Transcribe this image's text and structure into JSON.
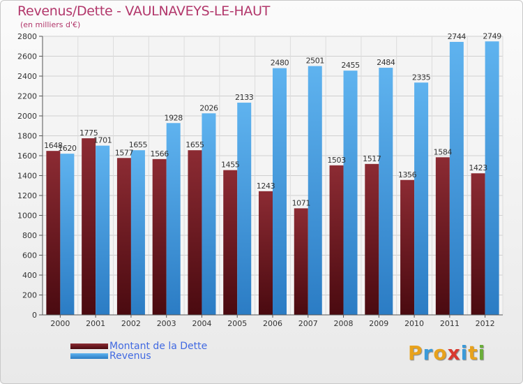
{
  "title": "Revenus/Dette - VAULNAVEYS-LE-HAUT",
  "subtitle": "(en milliers d'€)",
  "legend": [
    {
      "label": "Montant de la Dette",
      "color": "#7a1f28"
    },
    {
      "label": "Revenus",
      "color": "#4aa3e6"
    }
  ],
  "logo": {
    "text": "Proxiti",
    "letters": [
      {
        "ch": "P",
        "color": "#e8a21c"
      },
      {
        "ch": "r",
        "color": "#3b9ad9"
      },
      {
        "ch": "o",
        "color": "#e8a21c"
      },
      {
        "ch": "x",
        "color": "#d9392f"
      },
      {
        "ch": "i",
        "color": "#3b9ad9"
      },
      {
        "ch": "t",
        "color": "#e8a21c"
      },
      {
        "ch": "i",
        "color": "#6aae3a"
      }
    ]
  },
  "chart_data": {
    "type": "bar",
    "categories": [
      "2000",
      "2001",
      "2002",
      "2003",
      "2004",
      "2005",
      "2006",
      "2007",
      "2008",
      "2009",
      "2010",
      "2011",
      "2012"
    ],
    "series": [
      {
        "name": "Montant de la Dette",
        "color": "#7a1f28",
        "values": [
          1648,
          1775,
          1577,
          1566,
          1655,
          1455,
          1243,
          1071,
          1503,
          1517,
          1356,
          1584,
          1423
        ],
        "labels": [
          "1648",
          "1775",
          "1577",
          "1566",
          "1655",
          "1455",
          "1243",
          "1071",
          "1503",
          "1517",
          "1356",
          "1584",
          "1423"
        ]
      },
      {
        "name": "Revenus",
        "color": "#4aa3e6",
        "values": [
          1620,
          1701,
          1655,
          1928,
          2026,
          2133,
          2480,
          2501,
          2455,
          2484,
          2335,
          2744,
          2749
        ],
        "labels": [
          "1620",
          "1701",
          "1655",
          "1928",
          "2026",
          "2133",
          "2480",
          "2501",
          "2455",
          "2484",
          "2335",
          "2744",
          "2749"
        ]
      }
    ],
    "ylim": [
      0,
      2800
    ],
    "yticks": [
      0,
      200,
      400,
      600,
      800,
      1000,
      1200,
      1400,
      1600,
      1800,
      2000,
      2200,
      2400,
      2600,
      2800
    ],
    "grid": true,
    "legend_position": "bottom-left"
  }
}
